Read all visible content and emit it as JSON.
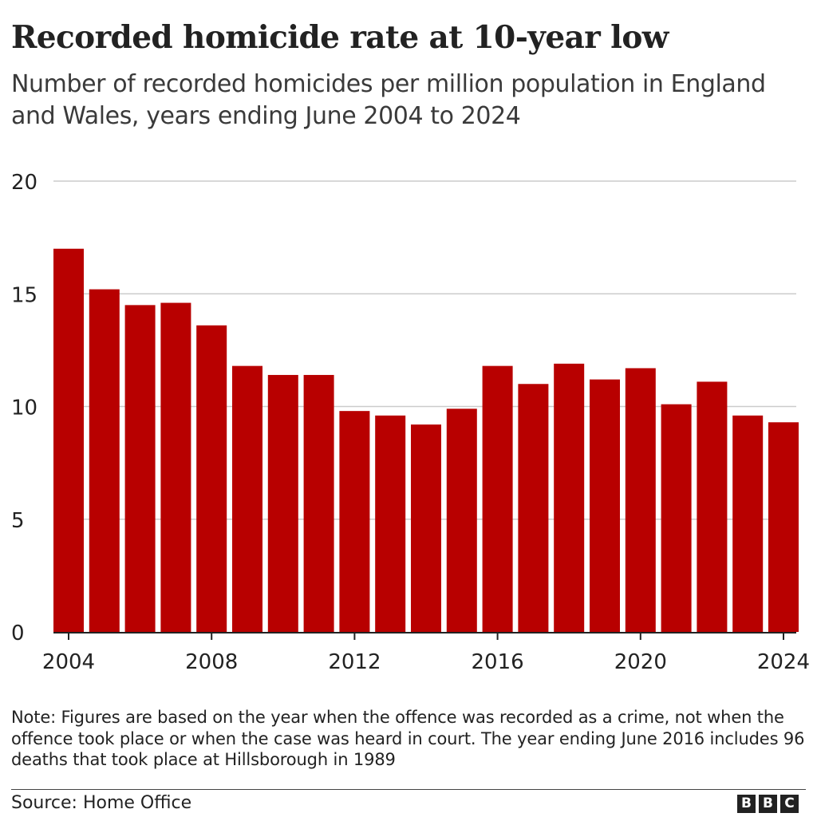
{
  "title": "Recorded homicide rate at 10-year low",
  "subtitle": "Number of recorded homicides per million population in England and Wales, years ending June 2004 to 2024",
  "note": "Note: Figures are based on the year when the offence was recorded as a crime, not when the offence took place or when the case was heard in court. The year ending June 2016 includes 96 deaths that took place at Hillsborough in 1989",
  "source": "Source: Home Office",
  "logo": {
    "letters": [
      "B",
      "B",
      "C"
    ]
  },
  "colors": {
    "bar": "#b80000",
    "grid": "#cccccc",
    "axis": "#222222",
    "text": "#222222"
  },
  "chart_data": {
    "type": "bar",
    "title": "Recorded homicide rate at 10-year low",
    "subtitle": "Number of recorded homicides per million population in England and Wales, years ending June 2004 to 2024",
    "xlabel": "",
    "ylabel": "",
    "categories": [
      2004,
      2005,
      2006,
      2007,
      2008,
      2009,
      2010,
      2011,
      2012,
      2013,
      2014,
      2015,
      2016,
      2017,
      2018,
      2019,
      2020,
      2021,
      2022,
      2023,
      2024
    ],
    "values": [
      17.0,
      15.2,
      14.5,
      14.6,
      13.6,
      11.8,
      11.4,
      11.4,
      9.8,
      9.6,
      9.2,
      9.9,
      11.8,
      11.0,
      11.9,
      11.2,
      11.7,
      10.1,
      11.1,
      9.6,
      9.3
    ],
    "ylim": [
      0,
      20
    ],
    "yticks": [
      0,
      5,
      10,
      15,
      20
    ],
    "xticks": [
      2004,
      2008,
      2012,
      2016,
      2020,
      2024
    ],
    "grid": true,
    "legend": "none"
  }
}
